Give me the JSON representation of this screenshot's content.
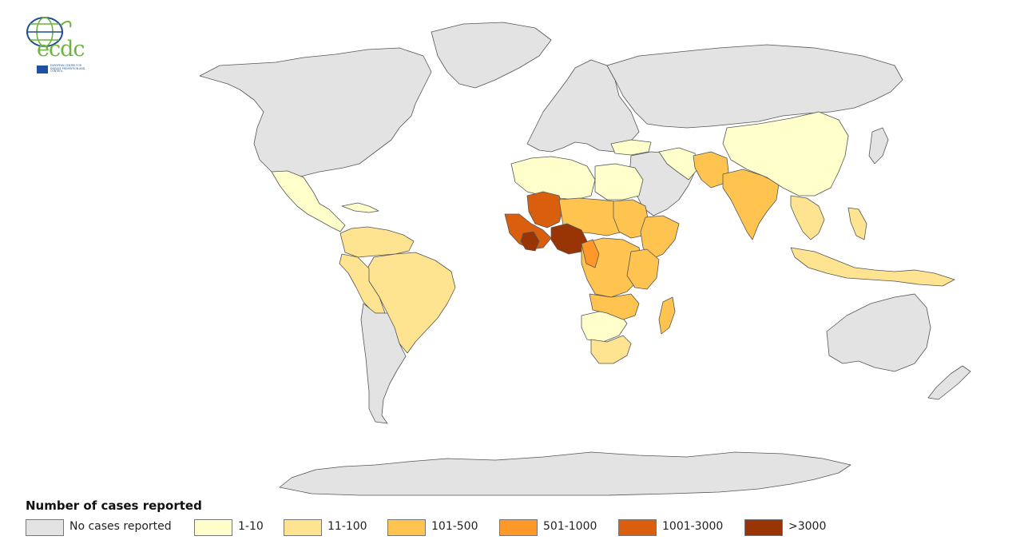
{
  "logo": {
    "text": "ecdc",
    "subtitle": "EUROPEAN CENTRE FOR DISEASE PREVENTION AND CONTROL"
  },
  "legend": {
    "title": "Number of cases reported",
    "items": [
      {
        "label": "No cases reported",
        "color": "#e3e3e3"
      },
      {
        "label": "1-10",
        "color": "#ffffcc"
      },
      {
        "label": "11-100",
        "color": "#fee391"
      },
      {
        "label": "101-500",
        "color": "#fec44f"
      },
      {
        "label": "501-1000",
        "color": "#fe9929"
      },
      {
        "label": "1001-3000",
        "color": "#d95f0e"
      },
      {
        "label": ">3000",
        "color": "#993404"
      }
    ]
  },
  "map": {
    "colors": {
      "none": "#e3e3e3",
      "c1_10": "#ffffcc",
      "c11_100": "#fee391",
      "c101_500": "#fec44f",
      "c501_1000": "#fe9929",
      "c1001_3000": "#d95f0e",
      "c3000": "#993404",
      "ocean": "#ffffff",
      "border": "#555555"
    }
  }
}
